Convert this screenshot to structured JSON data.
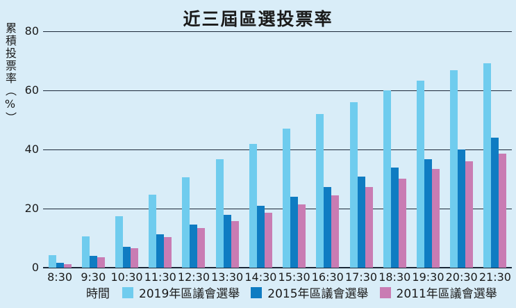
{
  "title": "近三屆區選投票率",
  "colors": {
    "background": "#d9edf8",
    "grid": "#1b2838",
    "text": "#1a1a1a",
    "series_2019": "#6fccee",
    "series_2015": "#0f7cc2",
    "series_2011": "#c97cb3"
  },
  "x_axis_title": "時間",
  "y_axis_title": "累積投票率（%）",
  "chart_data": {
    "type": "bar",
    "title": "近三屆區選投票率",
    "xlabel": "時間",
    "ylabel": "累積投票率（%）",
    "ylim": [
      0,
      80
    ],
    "yticks": [
      0,
      20,
      40,
      60,
      80
    ],
    "grid": true,
    "legend_position": "bottom",
    "categories": [
      "8:30",
      "9:30",
      "10:30",
      "11:30",
      "12:30",
      "13:30",
      "14:30",
      "15:30",
      "16:30",
      "17:30",
      "18:30",
      "19:30",
      "20:30",
      "21:30"
    ],
    "series": [
      {
        "name": "2019年區議會選舉",
        "color": "#6fccee",
        "values": [
          4.2,
          10.6,
          17.3,
          24.6,
          30.6,
          36.6,
          42.0,
          47.0,
          51.9,
          56.0,
          60.0,
          63.3,
          66.8,
          69.2
        ]
      },
      {
        "name": "2015年區議會選舉",
        "color": "#0f7cc2",
        "values": [
          1.6,
          4.0,
          7.0,
          11.2,
          14.7,
          17.9,
          21.0,
          24.1,
          27.2,
          30.9,
          33.8,
          36.6,
          40.1,
          43.9
        ]
      },
      {
        "name": "2011年區議會選舉",
        "color": "#c97cb3",
        "values": [
          1.2,
          3.5,
          6.6,
          10.4,
          13.3,
          15.8,
          18.7,
          21.3,
          24.4,
          27.2,
          30.2,
          33.3,
          35.9,
          38.7
        ]
      }
    ]
  }
}
